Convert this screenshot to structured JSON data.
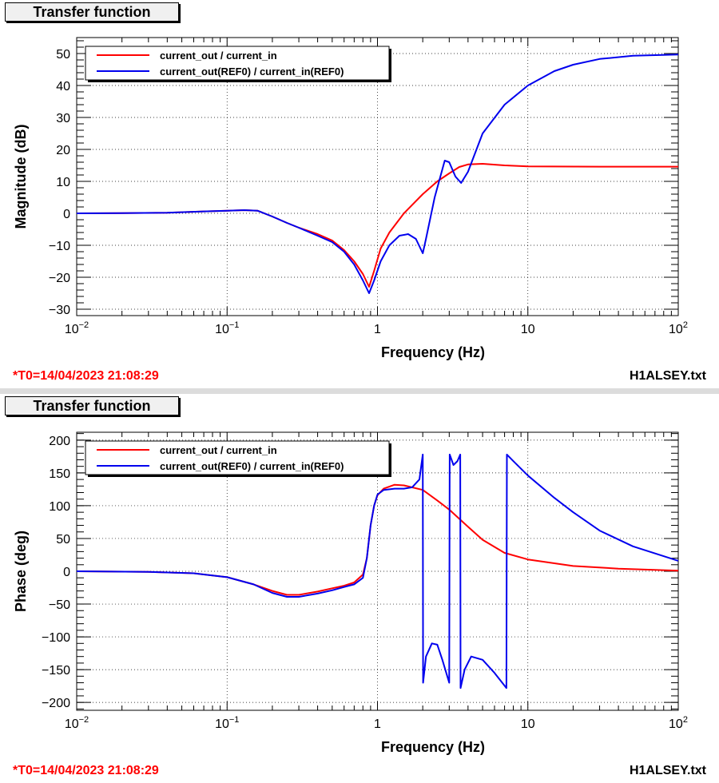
{
  "panels": [
    {
      "title": "Transfer function",
      "footer_left": "*T0=14/04/2023 21:08:29",
      "footer_right": "H1ALSEY.txt"
    },
    {
      "title": "Transfer function",
      "footer_left": "*T0=14/04/2023 21:08:29",
      "footer_right": "H1ALSEY.txt"
    }
  ],
  "colors": {
    "series_1": "#ff0000",
    "series_2": "#0000ee",
    "accent": "#ff0000"
  },
  "chart_data": [
    {
      "type": "line",
      "title": "",
      "xlabel": "Frequency (Hz)",
      "ylabel": "Magnitude (dB)",
      "xscale": "log",
      "xlim": [
        0.01,
        100
      ],
      "ylim": [
        -32,
        55
      ],
      "xticks": [
        0.01,
        0.1,
        1,
        10,
        100
      ],
      "xtick_labels": [
        {
          "base": "10",
          "exp": "−2"
        },
        {
          "base": "10",
          "exp": "−1"
        },
        {
          "base": "1",
          "exp": ""
        },
        {
          "base": "10",
          "exp": ""
        },
        {
          "base": "10",
          "exp": "2"
        }
      ],
      "yticks": [
        -30,
        -20,
        -10,
        0,
        10,
        20,
        30,
        40,
        50
      ],
      "ytick_labels": [
        "−30",
        "−20",
        "−10",
        "0",
        "10",
        "20",
        "30",
        "40",
        "50"
      ],
      "grid": true,
      "legend_position": "top-left",
      "series": [
        {
          "name": "current_out / current_in",
          "color": "#ff0000",
          "points": [
            [
              0.01,
              0
            ],
            [
              0.02,
              0.05
            ],
            [
              0.04,
              0.2
            ],
            [
              0.07,
              0.6
            ],
            [
              0.1,
              0.8
            ],
            [
              0.13,
              1.0
            ],
            [
              0.16,
              0.8
            ],
            [
              0.2,
              -1.0
            ],
            [
              0.25,
              -3
            ],
            [
              0.3,
              -4.5
            ],
            [
              0.4,
              -6.5
            ],
            [
              0.5,
              -8.5
            ],
            [
              0.6,
              -11.5
            ],
            [
              0.7,
              -15
            ],
            [
              0.8,
              -19
            ],
            [
              0.88,
              -23
            ],
            [
              0.95,
              -18
            ],
            [
              1.05,
              -11
            ],
            [
              1.2,
              -6
            ],
            [
              1.5,
              0
            ],
            [
              2,
              6
            ],
            [
              2.5,
              10
            ],
            [
              3,
              12.5
            ],
            [
              3.5,
              14.5
            ],
            [
              4,
              15.3
            ],
            [
              5,
              15.5
            ],
            [
              7,
              15
            ],
            [
              10,
              14.7
            ],
            [
              30,
              14.6
            ],
            [
              100,
              14.6
            ]
          ]
        },
        {
          "name": "current_out(REF0) / current_in(REF0)",
          "color": "#0000ee",
          "points": [
            [
              0.01,
              0
            ],
            [
              0.02,
              0.05
            ],
            [
              0.04,
              0.2
            ],
            [
              0.07,
              0.6
            ],
            [
              0.1,
              0.8
            ],
            [
              0.13,
              1.0
            ],
            [
              0.16,
              0.8
            ],
            [
              0.2,
              -1.0
            ],
            [
              0.25,
              -3
            ],
            [
              0.3,
              -4.5
            ],
            [
              0.4,
              -7
            ],
            [
              0.5,
              -9
            ],
            [
              0.6,
              -12
            ],
            [
              0.7,
              -16
            ],
            [
              0.8,
              -21
            ],
            [
              0.88,
              -25
            ],
            [
              0.95,
              -21
            ],
            [
              1.05,
              -15
            ],
            [
              1.2,
              -10
            ],
            [
              1.4,
              -7
            ],
            [
              1.6,
              -6.5
            ],
            [
              1.8,
              -8
            ],
            [
              2.0,
              -12.5
            ],
            [
              2.1,
              -8
            ],
            [
              2.4,
              5
            ],
            [
              2.8,
              16.5
            ],
            [
              3.0,
              16
            ],
            [
              3.3,
              11.5
            ],
            [
              3.6,
              9.5
            ],
            [
              4,
              13
            ],
            [
              5,
              25
            ],
            [
              7,
              34
            ],
            [
              10,
              40
            ],
            [
              15,
              44.5
            ],
            [
              20,
              46.5
            ],
            [
              30,
              48.3
            ],
            [
              50,
              49.3
            ],
            [
              100,
              49.7
            ]
          ]
        }
      ]
    },
    {
      "type": "line",
      "title": "",
      "xlabel": "Frequency (Hz)",
      "ylabel": "Phase (deg)",
      "xscale": "log",
      "xlim": [
        0.01,
        100
      ],
      "ylim": [
        -212,
        212
      ],
      "xticks": [
        0.01,
        0.1,
        1,
        10,
        100
      ],
      "xtick_labels": [
        {
          "base": "10",
          "exp": "−2"
        },
        {
          "base": "10",
          "exp": "−1"
        },
        {
          "base": "1",
          "exp": ""
        },
        {
          "base": "10",
          "exp": ""
        },
        {
          "base": "10",
          "exp": "2"
        }
      ],
      "yticks": [
        -200,
        -150,
        -100,
        -50,
        0,
        50,
        100,
        150,
        200
      ],
      "ytick_labels": [
        "−200",
        "−150",
        "−100",
        "−50",
        "0",
        "50",
        "100",
        "150",
        "200"
      ],
      "grid": true,
      "legend_position": "top-left",
      "series": [
        {
          "name": "current_out / current_in",
          "color": "#ff0000",
          "points": [
            [
              0.01,
              0
            ],
            [
              0.03,
              -1
            ],
            [
              0.06,
              -3
            ],
            [
              0.1,
              -9
            ],
            [
              0.15,
              -20
            ],
            [
              0.2,
              -30
            ],
            [
              0.25,
              -36
            ],
            [
              0.3,
              -36
            ],
            [
              0.4,
              -31
            ],
            [
              0.5,
              -26
            ],
            [
              0.6,
              -22
            ],
            [
              0.7,
              -17
            ],
            [
              0.8,
              -5
            ],
            [
              0.85,
              20
            ],
            [
              0.9,
              70
            ],
            [
              0.95,
              100
            ],
            [
              1.0,
              116
            ],
            [
              1.1,
              126
            ],
            [
              1.3,
              132
            ],
            [
              1.5,
              131
            ],
            [
              2,
              124
            ],
            [
              2.5,
              108
            ],
            [
              3,
              94
            ],
            [
              4,
              68
            ],
            [
              5,
              48
            ],
            [
              7,
              28
            ],
            [
              10,
              18
            ],
            [
              20,
              8
            ],
            [
              40,
              4
            ],
            [
              100,
              1
            ]
          ]
        },
        {
          "name": "current_out(REF0) / current_in(REF0)",
          "color": "#0000ee",
          "points": [
            [
              0.01,
              0
            ],
            [
              0.03,
              -1
            ],
            [
              0.06,
              -3
            ],
            [
              0.1,
              -9
            ],
            [
              0.15,
              -20
            ],
            [
              0.2,
              -33
            ],
            [
              0.25,
              -39
            ],
            [
              0.3,
              -39
            ],
            [
              0.4,
              -34
            ],
            [
              0.5,
              -29
            ],
            [
              0.6,
              -24
            ],
            [
              0.7,
              -20
            ],
            [
              0.8,
              -10
            ],
            [
              0.85,
              20
            ],
            [
              0.9,
              70
            ],
            [
              0.95,
              100
            ],
            [
              1.0,
              117
            ],
            [
              1.1,
              124
            ],
            [
              1.3,
              126
            ],
            [
              1.5,
              126
            ],
            [
              1.7,
              128
            ],
            [
              1.9,
              140
            ],
            [
              2.0,
              178
            ],
            [
              2.01,
              -170
            ],
            [
              2.1,
              -130
            ],
            [
              2.3,
              -110
            ],
            [
              2.5,
              -112
            ],
            [
              2.7,
              -135
            ],
            [
              3.0,
              -170
            ],
            [
              3.02,
              178
            ],
            [
              3.2,
              162
            ],
            [
              3.4,
              168
            ],
            [
              3.55,
              178
            ],
            [
              3.57,
              -178
            ],
            [
              3.8,
              -150
            ],
            [
              4.2,
              -130
            ],
            [
              5,
              -135
            ],
            [
              6,
              -155
            ],
            [
              7.2,
              -178
            ],
            [
              7.25,
              178
            ],
            [
              8,
              168
            ],
            [
              10,
              146
            ],
            [
              15,
              112
            ],
            [
              20,
              90
            ],
            [
              30,
              62
            ],
            [
              50,
              38
            ],
            [
              100,
              16
            ]
          ]
        }
      ]
    }
  ]
}
